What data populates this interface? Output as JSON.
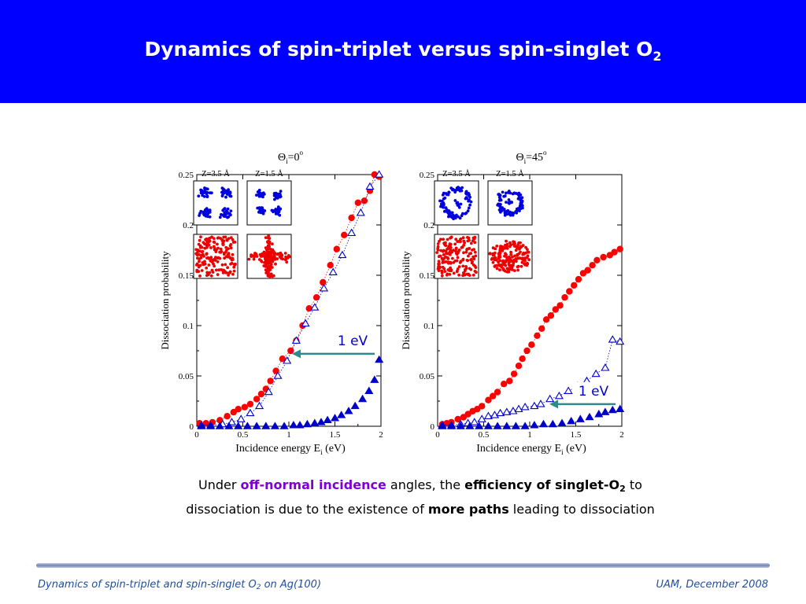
{
  "header": {
    "title": "Dynamics of spin-triplet versus spin-singlet O",
    "title_sub": "2",
    "bg_color": "#0000ff"
  },
  "chart_data": [
    {
      "type": "scatter",
      "title": "Θ",
      "title_sub": "i",
      "title_rest": "=0",
      "title_sup": "o",
      "xlabel": "Incidence energy E",
      "xlabel_sub": "i",
      "xlabel_rest": "(eV)",
      "ylabel": "Dissociation probability",
      "xlim": [
        0,
        2
      ],
      "ylim": [
        0,
        0.25
      ],
      "xticks": [
        "0",
        "0.5",
        "1",
        "1.5",
        "2"
      ],
      "yticks": [
        "0",
        "0.05",
        "0.1",
        "0.15",
        "0.2",
        "0.25"
      ],
      "grid": false,
      "series": [
        {
          "marker": "filled-circle",
          "color": "#ff0000",
          "line": "dotted",
          "points": [
            [
              0.03,
              0.003
            ],
            [
              0.1,
              0.003
            ],
            [
              0.17,
              0.004
            ],
            [
              0.25,
              0.006
            ],
            [
              0.33,
              0.01
            ],
            [
              0.4,
              0.014
            ],
            [
              0.45,
              0.017
            ],
            [
              0.52,
              0.019
            ],
            [
              0.58,
              0.022
            ],
            [
              0.65,
              0.027
            ],
            [
              0.7,
              0.032
            ],
            [
              0.75,
              0.037
            ],
            [
              0.8,
              0.045
            ],
            [
              0.86,
              0.055
            ],
            [
              0.93,
              0.067
            ],
            [
              1.02,
              0.075
            ],
            [
              1.08,
              0.085
            ],
            [
              1.15,
              0.1
            ],
            [
              1.22,
              0.117
            ],
            [
              1.3,
              0.128
            ],
            [
              1.37,
              0.143
            ],
            [
              1.45,
              0.16
            ],
            [
              1.52,
              0.176
            ],
            [
              1.6,
              0.19
            ],
            [
              1.68,
              0.207
            ],
            [
              1.75,
              0.222
            ],
            [
              1.82,
              0.224
            ],
            [
              1.88,
              0.234
            ],
            [
              1.93,
              0.25
            ],
            [
              1.98,
              0.248
            ]
          ]
        },
        {
          "marker": "open-triangle",
          "color": "#0000cc",
          "line": "dotted",
          "points": [
            [
              0.05,
              0.001
            ],
            [
              0.15,
              0.001
            ],
            [
              0.28,
              0.002
            ],
            [
              0.38,
              0.004
            ],
            [
              0.48,
              0.007
            ],
            [
              0.58,
              0.013
            ],
            [
              0.68,
              0.02
            ],
            [
              0.78,
              0.034
            ],
            [
              0.88,
              0.05
            ],
            [
              0.98,
              0.065
            ],
            [
              1.08,
              0.085
            ],
            [
              1.18,
              0.102
            ],
            [
              1.28,
              0.118
            ],
            [
              1.38,
              0.137
            ],
            [
              1.48,
              0.153
            ],
            [
              1.58,
              0.17
            ],
            [
              1.68,
              0.192
            ],
            [
              1.78,
              0.212
            ],
            [
              1.88,
              0.238
            ],
            [
              1.98,
              0.25
            ]
          ]
        },
        {
          "marker": "filled-triangle",
          "color": "#0000cc",
          "line": "none",
          "points": [
            [
              0.05,
              0
            ],
            [
              0.15,
              0
            ],
            [
              0.25,
              0
            ],
            [
              0.35,
              0
            ],
            [
              0.45,
              0
            ],
            [
              0.55,
              0
            ],
            [
              0.65,
              0
            ],
            [
              0.75,
              0
            ],
            [
              0.85,
              0
            ],
            [
              0.95,
              0
            ],
            [
              1.05,
              0.001
            ],
            [
              1.12,
              0.001
            ],
            [
              1.2,
              0.002
            ],
            [
              1.28,
              0.003
            ],
            [
              1.35,
              0.004
            ],
            [
              1.42,
              0.006
            ],
            [
              1.5,
              0.008
            ],
            [
              1.57,
              0.011
            ],
            [
              1.65,
              0.015
            ],
            [
              1.72,
              0.02
            ],
            [
              1.8,
              0.027
            ],
            [
              1.87,
              0.035
            ],
            [
              1.93,
              0.046
            ],
            [
              1.98,
              0.066
            ]
          ]
        }
      ],
      "insets": [
        {
          "label": "Z=3.5 Å",
          "color": "#0000dd",
          "pattern": "four-lobes"
        },
        {
          "label": "Z=1.5 Å",
          "color": "#0000dd",
          "pattern": "four-lobes-tight"
        },
        {
          "label": "",
          "color": "#ee0000",
          "pattern": "dense-uniform"
        },
        {
          "label": "",
          "color": "#ee0000",
          "pattern": "cross"
        }
      ],
      "annotation": {
        "text": "1 eV",
        "x": 1.0,
        "y": 0.072
      }
    },
    {
      "type": "scatter",
      "title": "Θ",
      "title_sub": "i",
      "title_rest": "=45",
      "title_sup": "o",
      "xlabel": "Incidence energy E",
      "xlabel_sub": "i",
      "xlabel_rest": "(eV)",
      "ylabel": "Dissociation probability",
      "xlim": [
        0,
        2
      ],
      "ylim": [
        0,
        0.25
      ],
      "xticks": [
        "0",
        "0.5",
        "1",
        "1.5",
        "2"
      ],
      "yticks": [
        "0",
        "0.05",
        "0.1",
        "0.15",
        "0.2",
        "0.25"
      ],
      "grid": false,
      "series": [
        {
          "marker": "filled-circle",
          "color": "#ff0000",
          "line": "dotted",
          "points": [
            [
              0.05,
              0.002
            ],
            [
              0.1,
              0.003
            ],
            [
              0.15,
              0.004
            ],
            [
              0.22,
              0.007
            ],
            [
              0.28,
              0.009
            ],
            [
              0.33,
              0.012
            ],
            [
              0.38,
              0.015
            ],
            [
              0.43,
              0.017
            ],
            [
              0.48,
              0.02
            ],
            [
              0.55,
              0.026
            ],
            [
              0.6,
              0.03
            ],
            [
              0.65,
              0.034
            ],
            [
              0.72,
              0.042
            ],
            [
              0.78,
              0.045
            ],
            [
              0.83,
              0.052
            ],
            [
              0.88,
              0.06
            ],
            [
              0.92,
              0.067
            ],
            [
              0.97,
              0.075
            ],
            [
              1.02,
              0.081
            ],
            [
              1.08,
              0.09
            ],
            [
              1.13,
              0.097
            ],
            [
              1.18,
              0.106
            ],
            [
              1.23,
              0.11
            ],
            [
              1.28,
              0.116
            ],
            [
              1.33,
              0.12
            ],
            [
              1.38,
              0.128
            ],
            [
              1.43,
              0.134
            ],
            [
              1.48,
              0.14
            ],
            [
              1.53,
              0.146
            ],
            [
              1.58,
              0.152
            ],
            [
              1.63,
              0.155
            ],
            [
              1.68,
              0.16
            ],
            [
              1.73,
              0.165
            ],
            [
              1.8,
              0.168
            ],
            [
              1.87,
              0.17
            ],
            [
              1.92,
              0.173
            ],
            [
              1.98,
              0.176
            ]
          ]
        },
        {
          "marker": "open-triangle",
          "color": "#0000cc",
          "line": "dotted",
          "points": [
            [
              0.05,
              0.001
            ],
            [
              0.15,
              0.001
            ],
            [
              0.25,
              0.002
            ],
            [
              0.33,
              0.003
            ],
            [
              0.4,
              0.004
            ],
            [
              0.48,
              0.007
            ],
            [
              0.55,
              0.01
            ],
            [
              0.62,
              0.011
            ],
            [
              0.68,
              0.013
            ],
            [
              0.75,
              0.014
            ],
            [
              0.82,
              0.015
            ],
            [
              0.88,
              0.017
            ],
            [
              0.95,
              0.019
            ],
            [
              1.05,
              0.02
            ],
            [
              1.12,
              0.022
            ],
            [
              1.22,
              0.027
            ],
            [
              1.32,
              0.03
            ],
            [
              1.42,
              0.035
            ],
            [
              1.52,
              0.04
            ],
            [
              1.62,
              0.045
            ],
            [
              1.72,
              0.052
            ],
            [
              1.82,
              0.058
            ],
            [
              1.9,
              0.086
            ],
            [
              1.98,
              0.084
            ]
          ]
        },
        {
          "marker": "filled-triangle",
          "color": "#0000cc",
          "line": "none",
          "points": [
            [
              0.05,
              0
            ],
            [
              0.15,
              0
            ],
            [
              0.25,
              0
            ],
            [
              0.35,
              0
            ],
            [
              0.45,
              0
            ],
            [
              0.55,
              0
            ],
            [
              0.65,
              0
            ],
            [
              0.75,
              0
            ],
            [
              0.85,
              0
            ],
            [
              0.95,
              0
            ],
            [
              1.05,
              0.001
            ],
            [
              1.15,
              0.002
            ],
            [
              1.25,
              0.002
            ],
            [
              1.35,
              0.003
            ],
            [
              1.45,
              0.005
            ],
            [
              1.55,
              0.007
            ],
            [
              1.65,
              0.009
            ],
            [
              1.75,
              0.012
            ],
            [
              1.82,
              0.014
            ],
            [
              1.9,
              0.016
            ],
            [
              1.98,
              0.017
            ]
          ]
        }
      ],
      "insets": [
        {
          "label": "Z=3.5 Å",
          "color": "#0000dd",
          "pattern": "ring"
        },
        {
          "label": "Z=1.5 Å",
          "color": "#0000dd",
          "pattern": "ring-tight"
        },
        {
          "label": "",
          "color": "#ee0000",
          "pattern": "dense-uniform"
        },
        {
          "label": "",
          "color": "#ee0000",
          "pattern": "dense-oval"
        }
      ],
      "annotation": {
        "text": "1 eV",
        "x": 1.18,
        "y": 0.022
      }
    }
  ],
  "caption": {
    "t1": "Under ",
    "t2": "off-normal incidence",
    "t3": " angles, the ",
    "t4": "efficiency of singlet-O",
    "t4_sub": "2",
    "t5": " to dissociation is due to the existence of ",
    "t6": "more paths",
    "t7": " leading to dissociation"
  },
  "footer": {
    "left": "Dynamics of spin-triplet and spin-singlet O",
    "left_sub": "2",
    "left_rest": " on Ag(100)",
    "right": "UAM, December 2008"
  },
  "colors": {
    "accent": "#0000ff",
    "purple": "#7f00d3",
    "arrow": "#2e8b8b",
    "annotation": "#0000cc"
  }
}
